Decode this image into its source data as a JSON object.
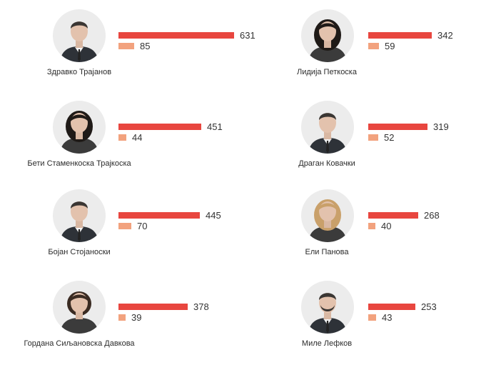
{
  "chart_data": {
    "type": "bar",
    "colors": {
      "primary": "#e8463f",
      "secondary": "#f2a27e"
    },
    "people": [
      {
        "name": "Здравко Трајанов",
        "values": [
          631,
          85
        ],
        "photo": "man-suit-portrait"
      },
      {
        "name": "Лидија Петкоска",
        "values": [
          342,
          59
        ],
        "photo": "woman-portrait"
      },
      {
        "name": "Бети Стаменкоска Трајкоска",
        "values": [
          451,
          44
        ],
        "photo": "woman-curly-hair-portrait"
      },
      {
        "name": "Драган Ковачки",
        "values": [
          319,
          52
        ],
        "photo": "man-suit-portrait"
      },
      {
        "name": "Бојан Стојаноски",
        "values": [
          445,
          70
        ],
        "photo": "man-suit-portrait"
      },
      {
        "name": "Ели Панова",
        "values": [
          268,
          40
        ],
        "photo": "woman-blonde-portrait"
      },
      {
        "name": "Гордана Сиљановска Давкова",
        "values": [
          378,
          39
        ],
        "photo": "woman-short-hair-portrait"
      },
      {
        "name": "Миле Лефков",
        "values": [
          253,
          43
        ],
        "photo": "man-beard-portrait"
      }
    ]
  }
}
